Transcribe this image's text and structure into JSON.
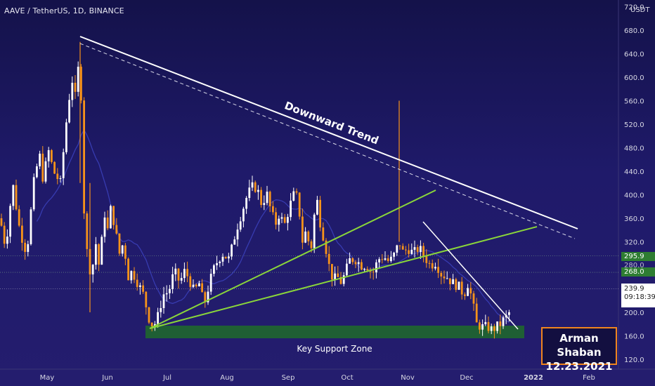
{
  "header": {
    "title": "AAVE / TetherUS, 1D, BINANCE"
  },
  "axis": {
    "unit": "USDT"
  },
  "chart_data": {
    "type": "candlestick",
    "y_ticks": [
      120,
      160,
      200,
      240,
      280,
      320,
      360,
      400,
      440,
      480,
      520,
      560,
      600,
      640,
      680,
      720
    ],
    "ylim": [
      110,
      730
    ],
    "x_labels": [
      "May",
      "Jun",
      "Jul",
      "Aug",
      "Sep",
      "Oct",
      "Nov",
      "Dec",
      "2022",
      "Feb"
    ],
    "price_path": [
      [
        0,
        360
      ],
      [
        8,
        310
      ],
      [
        18,
        420
      ],
      [
        28,
        340
      ],
      [
        38,
        300
      ],
      [
        48,
        420
      ],
      [
        56,
        470
      ],
      [
        62,
        420
      ],
      [
        68,
        480
      ],
      [
        76,
        440
      ],
      [
        86,
        420
      ],
      [
        94,
        520
      ],
      [
        102,
        600
      ],
      [
        108,
        560
      ],
      [
        114,
        660
      ],
      [
        118,
        400
      ],
      [
        124,
        300
      ],
      [
        130,
        260
      ],
      [
        136,
        320
      ],
      [
        142,
        270
      ],
      [
        148,
        380
      ],
      [
        152,
        330
      ],
      [
        158,
        380
      ],
      [
        164,
        340
      ],
      [
        170,
        300
      ],
      [
        176,
        320
      ],
      [
        182,
        260
      ],
      [
        188,
        270
      ],
      [
        196,
        250
      ],
      [
        204,
        230
      ],
      [
        212,
        190
      ],
      [
        218,
        175
      ],
      [
        224,
        190
      ],
      [
        232,
        230
      ],
      [
        240,
        235
      ],
      [
        248,
        270
      ],
      [
        256,
        250
      ],
      [
        262,
        270
      ],
      [
        268,
        260
      ],
      [
        276,
        235
      ],
      [
        284,
        250
      ],
      [
        290,
        210
      ],
      [
        298,
        250
      ],
      [
        306,
        280
      ],
      [
        316,
        300
      ],
      [
        326,
        290
      ],
      [
        336,
        340
      ],
      [
        344,
        370
      ],
      [
        352,
        400
      ],
      [
        360,
        415
      ],
      [
        366,
        410
      ],
      [
        372,
        385
      ],
      [
        380,
        400
      ],
      [
        386,
        370
      ],
      [
        392,
        350
      ],
      [
        398,
        370
      ],
      [
        404,
        345
      ],
      [
        412,
        380
      ],
      [
        418,
        400
      ],
      [
        424,
        395
      ],
      [
        430,
        320
      ],
      [
        436,
        340
      ],
      [
        442,
        300
      ],
      [
        450,
        400
      ],
      [
        456,
        350
      ],
      [
        462,
        320
      ],
      [
        468,
        280
      ],
      [
        474,
        255
      ],
      [
        480,
        260
      ],
      [
        486,
        250
      ],
      [
        492,
        270
      ],
      [
        498,
        290
      ],
      [
        506,
        290
      ],
      [
        514,
        280
      ],
      [
        522,
        280
      ],
      [
        530,
        265
      ],
      [
        538,
        290
      ],
      [
        546,
        295
      ],
      [
        554,
        285
      ],
      [
        562,
        300
      ],
      [
        568,
        320
      ],
      [
        574,
        300
      ],
      [
        580,
        310
      ],
      [
        588,
        300
      ],
      [
        596,
        310
      ],
      [
        604,
        295
      ],
      [
        612,
        280
      ],
      [
        620,
        285
      ],
      [
        628,
        265
      ],
      [
        636,
        260
      ],
      [
        644,
        250
      ],
      [
        652,
        245
      ],
      [
        660,
        230
      ],
      [
        666,
        250
      ],
      [
        672,
        220
      ],
      [
        678,
        180
      ],
      [
        686,
        175
      ],
      [
        694,
        175
      ],
      [
        700,
        170
      ],
      [
        706,
        175
      ],
      [
        712,
        180
      ],
      [
        718,
        190
      ],
      [
        724,
        195
      ],
      [
        728,
        235
      ]
    ],
    "annotations": {
      "downtrend": "Downward Trend",
      "support": "Key Support Zone"
    },
    "badges": {
      "level_1": "295.9",
      "level_2": "268.0",
      "level_faint": "280.0",
      "last_price": "239.9",
      "countdown": "09:18:39"
    }
  },
  "signature": {
    "name": "Arman Shaban",
    "date": "12.23.2021"
  },
  "colors": {
    "bull": "#ffffff",
    "bear": "#f7931a",
    "trend": "#ffffff",
    "green_line": "#8ad63a",
    "support_fill": "#1f6b2a",
    "ma": "#3a3fb8",
    "level_badge": "#2e7d32"
  }
}
